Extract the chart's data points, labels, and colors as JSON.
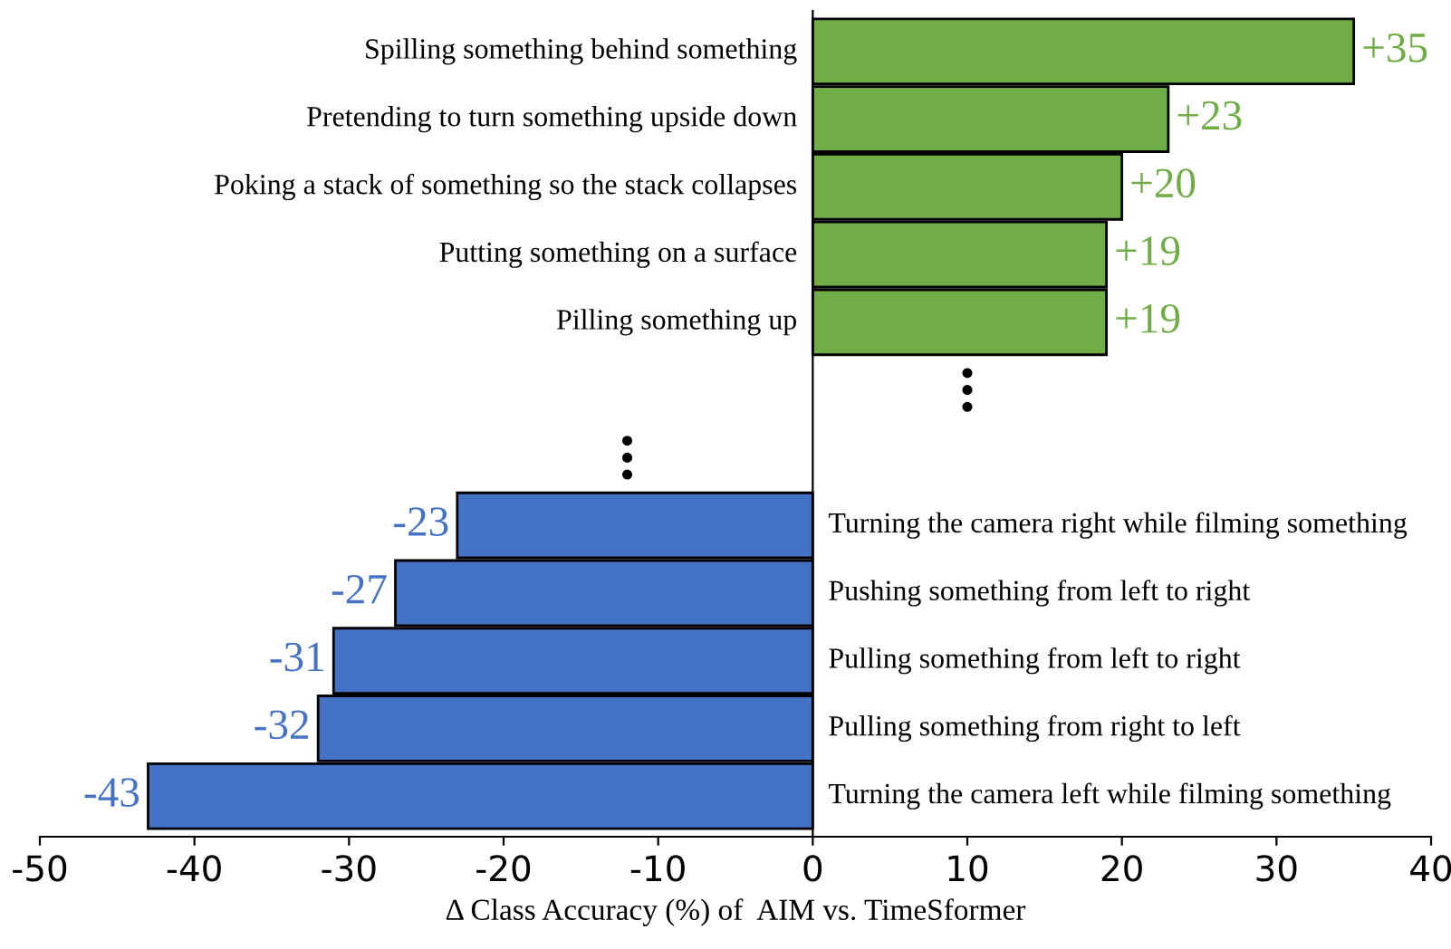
{
  "chart_data": {
    "type": "bar",
    "orientation": "horizontal",
    "xlabel": "Δ Class Accuracy (%) of  AIM vs. TimeSformer",
    "categories": [
      "Spilling something behind something",
      "Pretending to turn something upside down",
      "Poking a stack of something so the stack collapses",
      "Putting something on a surface",
      "Pilling something up",
      null,
      null,
      "Turning the camera right while filming something",
      "Pushing something from left to right",
      "Pulling something from left to right",
      "Pulling something from right to left",
      "Turning the camera left while filming something"
    ],
    "values": [
      35,
      23,
      20,
      19,
      19,
      null,
      null,
      -23,
      -27,
      -31,
      -32,
      -43
    ],
    "value_labels": [
      "+35",
      "+23",
      "+20",
      "+19",
      "+19",
      null,
      null,
      "-23",
      "-27",
      "-31",
      "-32",
      "-43"
    ],
    "colors": [
      "#70ad47",
      "#70ad47",
      "#70ad47",
      "#70ad47",
      "#70ad47",
      null,
      null,
      "#4472c4",
      "#4472c4",
      "#4472c4",
      "#4472c4",
      "#4472c4"
    ],
    "xlim": [
      -50,
      40
    ],
    "xticks": [
      -50,
      -40,
      -30,
      -20,
      -10,
      0,
      10,
      20,
      30,
      40
    ],
    "tick_labels": "x",
    "grid": false,
    "legend": false
  }
}
